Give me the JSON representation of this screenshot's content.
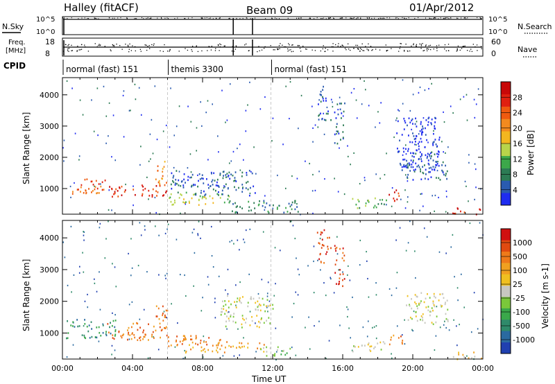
{
  "header": {
    "station": "Halley (fitACF)",
    "beam": "Beam 09",
    "date": "01/Apr/2012"
  },
  "labels": {
    "nsky": "N.Sky",
    "freq": "Freq.",
    "freq_unit": "[MHz]",
    "cpid": "CPID",
    "nsearch": "N.Search",
    "nave": "Nave"
  },
  "chart_data": [
    {
      "type": "line",
      "panel": "noise",
      "left_ticks": [
        "10^5",
        "10^0"
      ],
      "right_ticks": [
        "10^5",
        "10^0"
      ],
      "series": [
        {
          "name": "N.Sky"
        },
        {
          "name": "N.Search"
        }
      ],
      "gaps_hours": [
        9.75,
        10.85
      ],
      "level": 0.85
    },
    {
      "type": "scatter",
      "panel": "frequency",
      "left_ticks": [
        "18",
        "8"
      ],
      "right_ticks": [
        "60",
        "0"
      ],
      "series": [
        {
          "name": "Freq."
        },
        {
          "name": "Nave"
        }
      ]
    },
    {
      "type": "table",
      "panel": "cpid",
      "segments": [
        {
          "start": 0,
          "end": 6.0,
          "label": "normal (fast) 151"
        },
        {
          "start": 6.0,
          "end": 11.9,
          "label": "themis 3300"
        },
        {
          "start": 11.9,
          "end": 24,
          "label": "normal (fast) 151"
        }
      ]
    },
    {
      "type": "heatmap",
      "panel": "power",
      "ylabel": "Slant Range [km]",
      "xlim": [
        0,
        24
      ],
      "ylim": [
        180,
        4550
      ],
      "yticks": [
        "1000",
        "2000",
        "3000",
        "4000"
      ],
      "colorbar_label": "Power [dB]",
      "colorbar_ticks": [
        "4",
        "8",
        "12",
        "16",
        "20",
        "24",
        "28"
      ],
      "colors": [
        "#1e2cf0",
        "#2a5bb0",
        "#2c7b54",
        "#3ca84a",
        "#b8d44a",
        "#f3b61f",
        "#f28a1f",
        "#ef5a10",
        "#e02010",
        "#c80808"
      ],
      "regions": [
        {
          "t0": 0.2,
          "t1": 2.5,
          "r0": 850,
          "r1": 1350,
          "level": 7
        },
        {
          "t0": 2.5,
          "t1": 6.0,
          "r0": 760,
          "r1": 1150,
          "level": 8
        },
        {
          "t0": 5.3,
          "t1": 6.0,
          "r0": 1100,
          "r1": 1900,
          "level": 6
        },
        {
          "t0": 6.0,
          "t1": 9.5,
          "r0": 500,
          "r1": 900,
          "level": 4
        },
        {
          "t0": 6.0,
          "t1": 11.0,
          "r0": 800,
          "r1": 1600,
          "level": 1
        },
        {
          "t0": 9.5,
          "t1": 13.5,
          "r0": 250,
          "r1": 650,
          "level": 2
        },
        {
          "t0": 14.5,
          "t1": 15.3,
          "r0": 3200,
          "r1": 4300,
          "level": 1
        },
        {
          "t0": 15.5,
          "t1": 16.1,
          "r0": 2400,
          "r1": 3800,
          "level": 1
        },
        {
          "t0": 16.5,
          "t1": 18.5,
          "r0": 400,
          "r1": 750,
          "level": 3
        },
        {
          "t0": 18.6,
          "t1": 19.4,
          "r0": 600,
          "r1": 1000,
          "level": 8
        },
        {
          "t0": 19.5,
          "t1": 22.0,
          "r0": 1300,
          "r1": 2300,
          "level": 1
        },
        {
          "t0": 22.2,
          "t1": 24.0,
          "r0": 200,
          "r1": 420,
          "level": 8
        },
        {
          "t0": 19.0,
          "t1": 21.5,
          "r0": 1600,
          "r1": 3300,
          "level": 0
        }
      ]
    },
    {
      "type": "heatmap",
      "panel": "velocity",
      "ylabel": "Slant Range [km]",
      "xlabel": "Time UT",
      "xlim": [
        0,
        24
      ],
      "ylim": [
        180,
        4550
      ],
      "xticks": [
        "00:00",
        "04:00",
        "08:00",
        "12:00",
        "16:00",
        "20:00",
        "00:00"
      ],
      "yticks": [
        "1000",
        "2000",
        "3000",
        "4000"
      ],
      "colorbar_label": "Velocity [m s-1]",
      "colorbar_ticks": [
        "1000",
        "500",
        "100",
        "25",
        "-25",
        "-100",
        "-500",
        "-1000"
      ],
      "colors": [
        "#2040b0",
        "#2a6aa0",
        "#2f8a6a",
        "#3aa84a",
        "#7ac83a",
        "#c8c8c0",
        "#f0c020",
        "#f0a020",
        "#ee7a1a",
        "#e04a10",
        "#d01010"
      ],
      "regions": [
        {
          "t0": 0.2,
          "t1": 3.0,
          "r0": 850,
          "r1": 1450,
          "level": 2
        },
        {
          "t0": 2.5,
          "t1": 6.0,
          "r0": 800,
          "r1": 1350,
          "level": 8
        },
        {
          "t0": 5.3,
          "t1": 6.0,
          "r0": 1100,
          "r1": 1900,
          "level": 8
        },
        {
          "t0": 6.0,
          "t1": 9.0,
          "r0": 600,
          "r1": 1000,
          "level": 8
        },
        {
          "t0": 7.0,
          "t1": 11.5,
          "r0": 400,
          "r1": 750,
          "level": 7
        },
        {
          "t0": 11.0,
          "t1": 13.0,
          "r0": 300,
          "r1": 600,
          "level": 4
        },
        {
          "t0": 14.5,
          "t1": 15.3,
          "r0": 3200,
          "r1": 4300,
          "level": 9
        },
        {
          "t0": 15.5,
          "t1": 16.1,
          "r0": 2400,
          "r1": 3800,
          "level": 9
        },
        {
          "t0": 16.5,
          "t1": 18.5,
          "r0": 400,
          "r1": 750,
          "level": 5
        },
        {
          "t0": 18.6,
          "t1": 19.4,
          "r0": 600,
          "r1": 1000,
          "level": 8
        },
        {
          "t0": 19.5,
          "t1": 22.0,
          "r0": 1300,
          "r1": 2300,
          "level": 5
        },
        {
          "t0": 22.2,
          "t1": 24.0,
          "r0": 200,
          "r1": 420,
          "level": 6
        },
        {
          "t0": 9.0,
          "t1": 12.0,
          "r0": 1200,
          "r1": 2200,
          "level": 5
        }
      ]
    }
  ]
}
